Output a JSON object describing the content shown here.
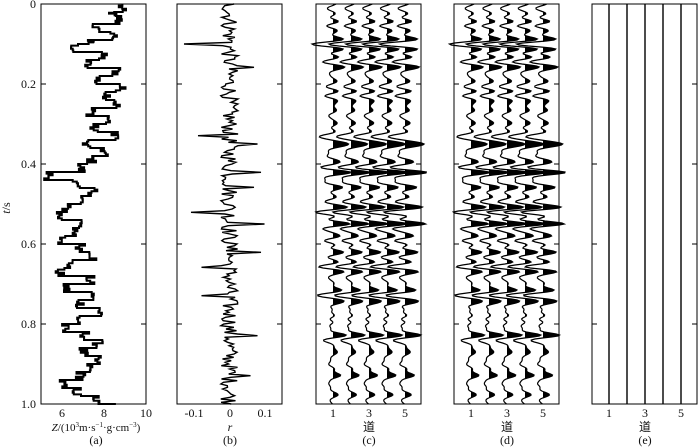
{
  "figure": {
    "y_label": "t/s",
    "y_label_italic_part": "t",
    "y_label_rest": "/s",
    "y_ticks": [
      "0",
      "0.2",
      "0.4",
      "0.6",
      "0.8",
      "1.0"
    ]
  },
  "chart_data": [
    {
      "type": "line",
      "panel_label": "(a)",
      "xlabel": "Z/(10³m·s⁻¹·g·cm⁻³)",
      "xlabel_parts": {
        "lead": "Z",
        "rest": "/(10",
        "sup1": "3",
        "mid1": "m·s",
        "sup2": "−1",
        "mid2": "·g·cm",
        "sup3": "−3",
        "end": ")"
      },
      "xlim": [
        5,
        10
      ],
      "xticks": [
        "6",
        "8",
        "10"
      ],
      "ylim": [
        0,
        1.0
      ],
      "series": [
        {
          "t": [
            0.0,
            0.02,
            0.03,
            0.05,
            0.07,
            0.09,
            0.1,
            0.12,
            0.14,
            0.16,
            0.18,
            0.2,
            0.22,
            0.24,
            0.26,
            0.28,
            0.3,
            0.32,
            0.34,
            0.36,
            0.38,
            0.4,
            0.42,
            0.44,
            0.46,
            0.48,
            0.5,
            0.52,
            0.54,
            0.56,
            0.58,
            0.6,
            0.62,
            0.64,
            0.66,
            0.68,
            0.7,
            0.72,
            0.74,
            0.76,
            0.78,
            0.8,
            0.82,
            0.84,
            0.86,
            0.88,
            0.9,
            0.92,
            0.94,
            0.96,
            0.98,
            1.0
          ],
          "z": [
            8.8,
            8.4,
            8.7,
            7.6,
            8.5,
            7.3,
            6.6,
            7.9,
            7.2,
            8.6,
            7.7,
            8.8,
            8.2,
            8.6,
            7.4,
            8.2,
            7.5,
            8.6,
            7.1,
            8.0,
            7.4,
            6.9,
            5.4,
            6.6,
            7.5,
            6.9,
            6.2,
            5.9,
            7.0,
            6.5,
            6.0,
            6.9,
            7.5,
            6.4,
            5.9,
            7.3,
            6.2,
            7.4,
            6.9,
            7.8,
            6.8,
            6.1,
            7.1,
            7.7,
            7.0,
            7.6,
            7.3,
            6.9,
            6.0,
            6.7,
            7.6,
            8.4
          ]
        }
      ]
    },
    {
      "type": "line",
      "panel_label": "(b)",
      "xlabel": "r",
      "xlim": [
        -0.15,
        0.15
      ],
      "xticks": [
        "-0.1",
        "0",
        "0.1"
      ],
      "xtick_values": [
        -0.1,
        0,
        0.1
      ],
      "ylim": [
        0,
        1.0
      ],
      "description_of_series": "reflectivity sequence"
    },
    {
      "type": "line",
      "panel_label": "(c)",
      "xlabel": "道",
      "xticks": [
        "1",
        "3",
        "5"
      ],
      "xtick_values": [
        1,
        3,
        5
      ],
      "traces": 5,
      "ylim": [
        0,
        1.0
      ]
    },
    {
      "type": "line",
      "panel_label": "(d)",
      "xlabel": "道",
      "xticks": [
        "1",
        "3",
        "5"
      ],
      "xtick_values": [
        1,
        3,
        5
      ],
      "traces": 5,
      "ylim": [
        0,
        1.0
      ]
    },
    {
      "type": "line",
      "panel_label": "(e)",
      "xlabel": "道",
      "xticks": [
        "1",
        "3",
        "5"
      ],
      "xtick_values": [
        1,
        3,
        5
      ],
      "traces": 5,
      "ylim": [
        0,
        1.0
      ]
    }
  ]
}
